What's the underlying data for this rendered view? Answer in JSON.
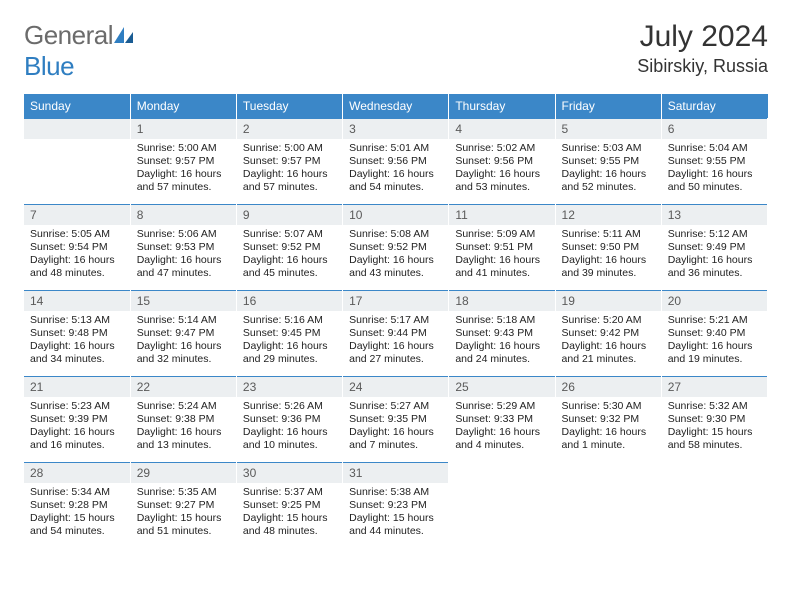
{
  "logo": {
    "part1": "General",
    "part2": "Blue"
  },
  "title": "July 2024",
  "location": "Sibirskiy, Russia",
  "colors": {
    "header_bg": "#3b87c8",
    "header_text": "#ffffff",
    "daynum_bg": "#eceff1",
    "daynum_text": "#5a5a5a",
    "cell_border_top": "#3b87c8",
    "body_text": "#222222",
    "logo_gray": "#6b6b6b",
    "logo_blue": "#2f7ec1"
  },
  "weekdays": [
    "Sunday",
    "Monday",
    "Tuesday",
    "Wednesday",
    "Thursday",
    "Friday",
    "Saturday"
  ],
  "weeks": [
    [
      {
        "n": "",
        "sr": "",
        "ss": "",
        "dl1": "",
        "dl2": ""
      },
      {
        "n": "1",
        "sr": "Sunrise: 5:00 AM",
        "ss": "Sunset: 9:57 PM",
        "dl1": "Daylight: 16 hours",
        "dl2": "and 57 minutes."
      },
      {
        "n": "2",
        "sr": "Sunrise: 5:00 AM",
        "ss": "Sunset: 9:57 PM",
        "dl1": "Daylight: 16 hours",
        "dl2": "and 57 minutes."
      },
      {
        "n": "3",
        "sr": "Sunrise: 5:01 AM",
        "ss": "Sunset: 9:56 PM",
        "dl1": "Daylight: 16 hours",
        "dl2": "and 54 minutes."
      },
      {
        "n": "4",
        "sr": "Sunrise: 5:02 AM",
        "ss": "Sunset: 9:56 PM",
        "dl1": "Daylight: 16 hours",
        "dl2": "and 53 minutes."
      },
      {
        "n": "5",
        "sr": "Sunrise: 5:03 AM",
        "ss": "Sunset: 9:55 PM",
        "dl1": "Daylight: 16 hours",
        "dl2": "and 52 minutes."
      },
      {
        "n": "6",
        "sr": "Sunrise: 5:04 AM",
        "ss": "Sunset: 9:55 PM",
        "dl1": "Daylight: 16 hours",
        "dl2": "and 50 minutes."
      }
    ],
    [
      {
        "n": "7",
        "sr": "Sunrise: 5:05 AM",
        "ss": "Sunset: 9:54 PM",
        "dl1": "Daylight: 16 hours",
        "dl2": "and 48 minutes."
      },
      {
        "n": "8",
        "sr": "Sunrise: 5:06 AM",
        "ss": "Sunset: 9:53 PM",
        "dl1": "Daylight: 16 hours",
        "dl2": "and 47 minutes."
      },
      {
        "n": "9",
        "sr": "Sunrise: 5:07 AM",
        "ss": "Sunset: 9:52 PM",
        "dl1": "Daylight: 16 hours",
        "dl2": "and 45 minutes."
      },
      {
        "n": "10",
        "sr": "Sunrise: 5:08 AM",
        "ss": "Sunset: 9:52 PM",
        "dl1": "Daylight: 16 hours",
        "dl2": "and 43 minutes."
      },
      {
        "n": "11",
        "sr": "Sunrise: 5:09 AM",
        "ss": "Sunset: 9:51 PM",
        "dl1": "Daylight: 16 hours",
        "dl2": "and 41 minutes."
      },
      {
        "n": "12",
        "sr": "Sunrise: 5:11 AM",
        "ss": "Sunset: 9:50 PM",
        "dl1": "Daylight: 16 hours",
        "dl2": "and 39 minutes."
      },
      {
        "n": "13",
        "sr": "Sunrise: 5:12 AM",
        "ss": "Sunset: 9:49 PM",
        "dl1": "Daylight: 16 hours",
        "dl2": "and 36 minutes."
      }
    ],
    [
      {
        "n": "14",
        "sr": "Sunrise: 5:13 AM",
        "ss": "Sunset: 9:48 PM",
        "dl1": "Daylight: 16 hours",
        "dl2": "and 34 minutes."
      },
      {
        "n": "15",
        "sr": "Sunrise: 5:14 AM",
        "ss": "Sunset: 9:47 PM",
        "dl1": "Daylight: 16 hours",
        "dl2": "and 32 minutes."
      },
      {
        "n": "16",
        "sr": "Sunrise: 5:16 AM",
        "ss": "Sunset: 9:45 PM",
        "dl1": "Daylight: 16 hours",
        "dl2": "and 29 minutes."
      },
      {
        "n": "17",
        "sr": "Sunrise: 5:17 AM",
        "ss": "Sunset: 9:44 PM",
        "dl1": "Daylight: 16 hours",
        "dl2": "and 27 minutes."
      },
      {
        "n": "18",
        "sr": "Sunrise: 5:18 AM",
        "ss": "Sunset: 9:43 PM",
        "dl1": "Daylight: 16 hours",
        "dl2": "and 24 minutes."
      },
      {
        "n": "19",
        "sr": "Sunrise: 5:20 AM",
        "ss": "Sunset: 9:42 PM",
        "dl1": "Daylight: 16 hours",
        "dl2": "and 21 minutes."
      },
      {
        "n": "20",
        "sr": "Sunrise: 5:21 AM",
        "ss": "Sunset: 9:40 PM",
        "dl1": "Daylight: 16 hours",
        "dl2": "and 19 minutes."
      }
    ],
    [
      {
        "n": "21",
        "sr": "Sunrise: 5:23 AM",
        "ss": "Sunset: 9:39 PM",
        "dl1": "Daylight: 16 hours",
        "dl2": "and 16 minutes."
      },
      {
        "n": "22",
        "sr": "Sunrise: 5:24 AM",
        "ss": "Sunset: 9:38 PM",
        "dl1": "Daylight: 16 hours",
        "dl2": "and 13 minutes."
      },
      {
        "n": "23",
        "sr": "Sunrise: 5:26 AM",
        "ss": "Sunset: 9:36 PM",
        "dl1": "Daylight: 16 hours",
        "dl2": "and 10 minutes."
      },
      {
        "n": "24",
        "sr": "Sunrise: 5:27 AM",
        "ss": "Sunset: 9:35 PM",
        "dl1": "Daylight: 16 hours",
        "dl2": "and 7 minutes."
      },
      {
        "n": "25",
        "sr": "Sunrise: 5:29 AM",
        "ss": "Sunset: 9:33 PM",
        "dl1": "Daylight: 16 hours",
        "dl2": "and 4 minutes."
      },
      {
        "n": "26",
        "sr": "Sunrise: 5:30 AM",
        "ss": "Sunset: 9:32 PM",
        "dl1": "Daylight: 16 hours",
        "dl2": "and 1 minute."
      },
      {
        "n": "27",
        "sr": "Sunrise: 5:32 AM",
        "ss": "Sunset: 9:30 PM",
        "dl1": "Daylight: 15 hours",
        "dl2": "and 58 minutes."
      }
    ],
    [
      {
        "n": "28",
        "sr": "Sunrise: 5:34 AM",
        "ss": "Sunset: 9:28 PM",
        "dl1": "Daylight: 15 hours",
        "dl2": "and 54 minutes."
      },
      {
        "n": "29",
        "sr": "Sunrise: 5:35 AM",
        "ss": "Sunset: 9:27 PM",
        "dl1": "Daylight: 15 hours",
        "dl2": "and 51 minutes."
      },
      {
        "n": "30",
        "sr": "Sunrise: 5:37 AM",
        "ss": "Sunset: 9:25 PM",
        "dl1": "Daylight: 15 hours",
        "dl2": "and 48 minutes."
      },
      {
        "n": "31",
        "sr": "Sunrise: 5:38 AM",
        "ss": "Sunset: 9:23 PM",
        "dl1": "Daylight: 15 hours",
        "dl2": "and 44 minutes."
      },
      {
        "n": "",
        "sr": "",
        "ss": "",
        "dl1": "",
        "dl2": ""
      },
      {
        "n": "",
        "sr": "",
        "ss": "",
        "dl1": "",
        "dl2": ""
      },
      {
        "n": "",
        "sr": "",
        "ss": "",
        "dl1": "",
        "dl2": ""
      }
    ]
  ]
}
